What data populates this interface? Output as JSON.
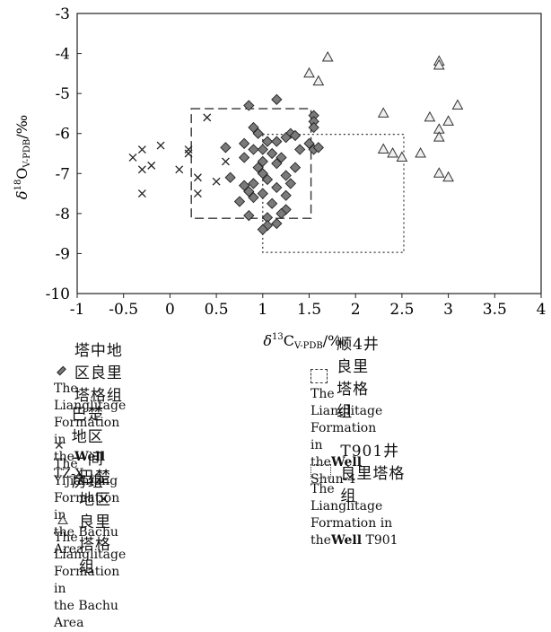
{
  "chart_data": {
    "type": "scatter",
    "xlabel": {
      "base": "δ",
      "sup": "13",
      "main": "C",
      "sub": "V-PDB",
      "unit": "/‰"
    },
    "ylabel": {
      "base": "δ",
      "sup": "18",
      "main": "O",
      "sub": "V-PDB",
      "unit": "/‰"
    },
    "xlim": [
      -1,
      4
    ],
    "ylim": [
      -10,
      -3
    ],
    "xticks": [
      "-1",
      "-0.5",
      "0",
      "0.5",
      "1",
      "1.5",
      "2",
      "2.5",
      "3",
      "3.5",
      "4"
    ],
    "yticks": [
      "-3",
      "-4",
      "-5",
      "-6",
      "-7",
      "-8",
      "-9",
      "-10"
    ],
    "grid": false,
    "series": [
      {
        "marker": "diamond",
        "points": [
          [
            0.85,
            -5.3
          ],
          [
            1.15,
            -5.15
          ],
          [
            1.55,
            -5.55
          ],
          [
            1.55,
            -5.7
          ],
          [
            1.55,
            -5.85
          ],
          [
            0.9,
            -5.85
          ],
          [
            0.95,
            -6.0
          ],
          [
            1.3,
            -6.0
          ],
          [
            1.35,
            -6.05
          ],
          [
            1.25,
            -6.1
          ],
          [
            1.05,
            -6.2
          ],
          [
            1.15,
            -6.2
          ],
          [
            0.8,
            -6.25
          ],
          [
            1.5,
            -6.25
          ],
          [
            0.6,
            -6.35
          ],
          [
            1.55,
            -6.4
          ],
          [
            1.6,
            -6.35
          ],
          [
            0.9,
            -6.4
          ],
          [
            1.0,
            -6.4
          ],
          [
            1.4,
            -6.4
          ],
          [
            1.1,
            -6.5
          ],
          [
            1.2,
            -6.6
          ],
          [
            0.8,
            -6.6
          ],
          [
            1.0,
            -6.7
          ],
          [
            1.15,
            -6.75
          ],
          [
            0.95,
            -6.85
          ],
          [
            1.35,
            -6.85
          ],
          [
            1.0,
            -7.0
          ],
          [
            1.25,
            -7.05
          ],
          [
            0.65,
            -7.1
          ],
          [
            1.05,
            -7.15
          ],
          [
            0.9,
            -7.25
          ],
          [
            1.3,
            -7.25
          ],
          [
            0.8,
            -7.3
          ],
          [
            1.15,
            -7.35
          ],
          [
            0.85,
            -7.45
          ],
          [
            1.0,
            -7.5
          ],
          [
            1.25,
            -7.55
          ],
          [
            0.9,
            -7.6
          ],
          [
            0.75,
            -7.7
          ],
          [
            1.1,
            -7.75
          ],
          [
            1.25,
            -7.9
          ],
          [
            1.2,
            -8.0
          ],
          [
            0.85,
            -8.05
          ],
          [
            1.05,
            -8.1
          ],
          [
            1.15,
            -8.25
          ],
          [
            1.05,
            -8.3
          ],
          [
            1.0,
            -8.4
          ]
        ]
      },
      {
        "marker": "cross",
        "points": [
          [
            0.4,
            -5.6
          ],
          [
            -0.3,
            -6.4
          ],
          [
            -0.1,
            -6.3
          ],
          [
            0.2,
            -6.4
          ],
          [
            0.2,
            -6.5
          ],
          [
            -0.4,
            -6.6
          ],
          [
            -0.2,
            -6.8
          ],
          [
            -0.3,
            -6.9
          ],
          [
            0.1,
            -6.9
          ],
          [
            0.3,
            -7.1
          ],
          [
            0.6,
            -6.7
          ],
          [
            0.5,
            -7.2
          ],
          [
            0.3,
            -7.5
          ],
          [
            -0.3,
            -7.5
          ]
        ]
      },
      {
        "marker": "triangle",
        "points": [
          [
            1.7,
            -4.1
          ],
          [
            1.5,
            -4.5
          ],
          [
            1.6,
            -4.7
          ],
          [
            2.9,
            -4.2
          ],
          [
            2.9,
            -4.3
          ],
          [
            2.3,
            -5.5
          ],
          [
            3.1,
            -5.3
          ],
          [
            2.8,
            -5.6
          ],
          [
            3.0,
            -5.7
          ],
          [
            2.9,
            -5.9
          ],
          [
            2.9,
            -6.1
          ],
          [
            2.3,
            -6.4
          ],
          [
            2.4,
            -6.5
          ],
          [
            2.5,
            -6.6
          ],
          [
            2.7,
            -6.5
          ],
          [
            2.9,
            -7.0
          ],
          [
            3.0,
            -7.1
          ]
        ]
      }
    ],
    "regions": [
      {
        "style": "dashed",
        "x": [
          0.23,
          1.52
        ],
        "y": [
          -8.12,
          -5.38
        ]
      },
      {
        "style": "dotted",
        "x": [
          1.0,
          2.52
        ],
        "y": [
          -8.97,
          -6.02
        ]
      }
    ]
  },
  "legend": {
    "left": [
      {
        "symbol": "diamond",
        "cn": "塔中地区良里塔格组",
        "en1": "The Lianglitage Formation in",
        "en2_pre": "the",
        "en2_bold": "Well",
        "en2_post": " TZ-X"
      },
      {
        "symbol": "cross",
        "cn": "巴楚地区一间房组",
        "en1": "The Yijianfang Formation in",
        "en2_pre": "the Bachu Area",
        "en2_bold": "",
        "en2_post": ""
      },
      {
        "symbol": "triangle",
        "cn": "巴楚地区良里塔格组",
        "en1": "The Lianglitage Formation in",
        "en2_pre": "the Bachu Area",
        "en2_bold": "",
        "en2_post": ""
      }
    ],
    "right": [
      {
        "symbol": "dashed-box",
        "cn": "顺4井良里塔格组",
        "en1": "The Lianglitage Formation in",
        "en2_pre": "the",
        "en2_bold": "Well",
        "en2_post": " Shun-4"
      },
      {
        "symbol": "dotted-box",
        "cn": "T901井良里塔格组",
        "en1": "The Lianglitage Formation in",
        "en2_pre": "the",
        "en2_bold": "Well",
        "en2_post": " T901"
      }
    ]
  }
}
